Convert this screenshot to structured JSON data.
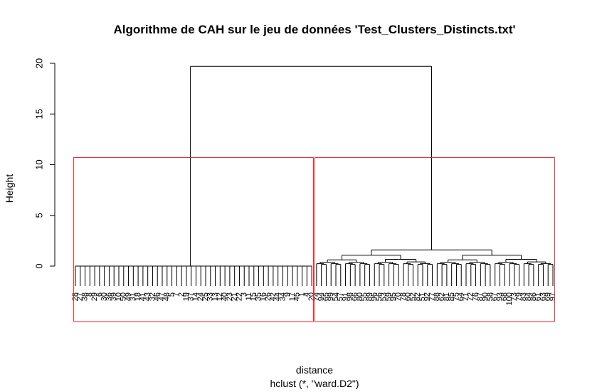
{
  "chart_data": {
    "type": "dendrogram",
    "title": "Algorithme de CAH sur le jeu de données 'Test_Clusters_Distincts.txt'",
    "xlabel": "distance",
    "subtitle": "hclust (*, \"ward.D2\")",
    "ylabel": "Height",
    "ylim": [
      0,
      20
    ],
    "yticks": [
      0,
      5,
      10,
      15,
      20
    ],
    "root_height": 19.7,
    "cut_rectangles": 2,
    "cut_color": "#e8262f",
    "line_color": "#000000",
    "left_cluster": {
      "merge_height": 0.0,
      "labels": [
        "28",
        "27",
        "38",
        "8",
        "29",
        "6",
        "30",
        "36",
        "39",
        "10",
        "50",
        "49",
        "31",
        "18",
        "41",
        "43",
        "32",
        "46",
        "47",
        "48",
        "5",
        "7",
        "2",
        "19",
        "37",
        "14",
        "24",
        "25",
        "33",
        "13",
        "12",
        "40",
        "23",
        "21",
        "22",
        "3",
        "11",
        "15",
        "35",
        "16",
        "26",
        "42",
        "44",
        "34",
        "9",
        "17",
        "45",
        "1",
        "4",
        "20"
      ]
    },
    "right_cluster": {
      "merge_height": 1.6,
      "labels": [
        "74",
        "94",
        "65",
        "99",
        "54",
        "57",
        "91",
        "98",
        "66",
        "80",
        "55",
        "89",
        "96",
        "56",
        "53",
        "59",
        "95",
        "70",
        "78",
        "60",
        "52",
        "82",
        "51",
        "92",
        "77",
        "88",
        "62",
        "81",
        "85",
        "75",
        "64",
        "71",
        "72",
        "76",
        "87",
        "90",
        "58",
        "67",
        "93",
        "68",
        "100",
        "73",
        "79",
        "83",
        "84",
        "86",
        "61",
        "63",
        "69",
        "97"
      ]
    }
  }
}
